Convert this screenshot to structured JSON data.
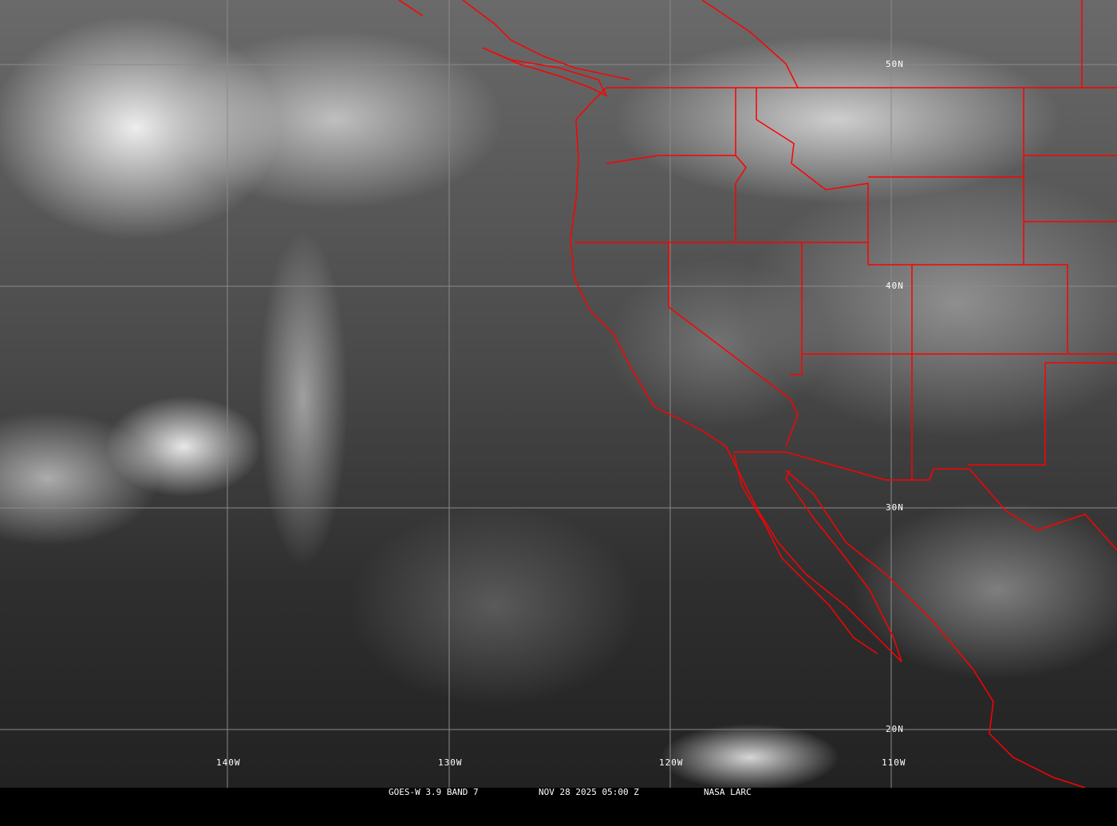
{
  "satellite_image": {
    "grid_labels": {
      "longitude": [
        "140W",
        "130W",
        "120W",
        "110W"
      ],
      "latitude": [
        "50N",
        "40N",
        "30N",
        "20N"
      ]
    },
    "caption": {
      "sensor": "GOES-W 3.9 BAND 7",
      "datetime": "NOV 28 2025 05:00 Z",
      "source": "NASA LARC"
    },
    "colors": {
      "boundaries": "#ff0000",
      "grid": "#8a8a8a",
      "background": "#000000"
    }
  }
}
